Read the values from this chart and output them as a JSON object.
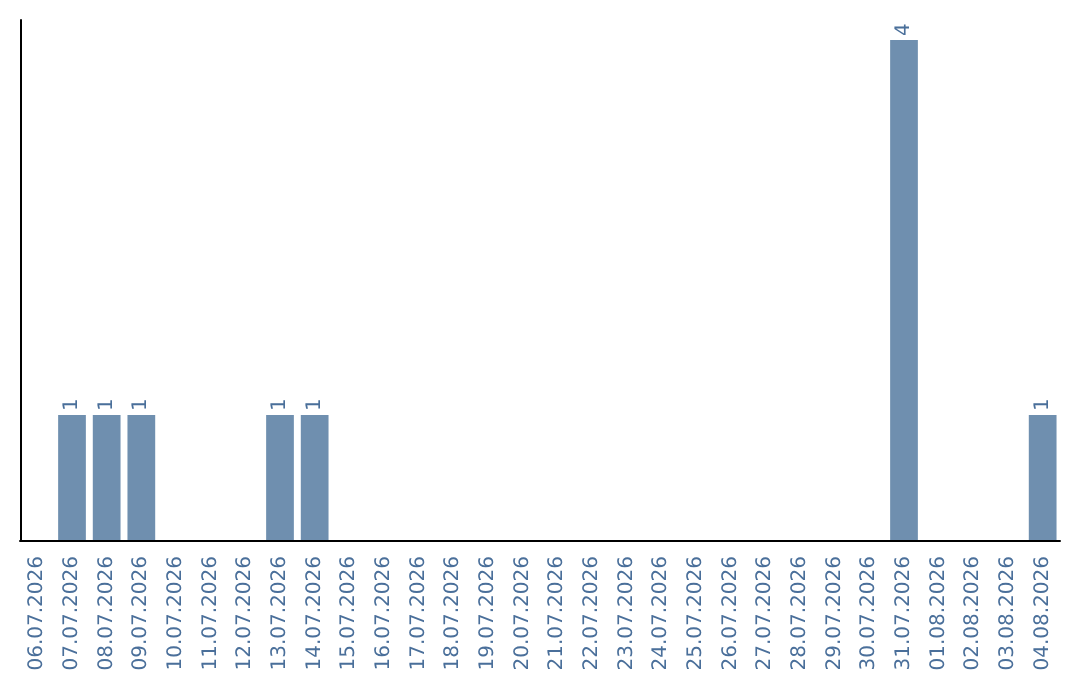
{
  "chart_data": {
    "type": "bar",
    "categories": [
      "06.07.2026",
      "07.07.2026",
      "08.07.2026",
      "09.07.2026",
      "10.07.2026",
      "11.07.2026",
      "12.07.2026",
      "13.07.2026",
      "14.07.2026",
      "15.07.2026",
      "16.07.2026",
      "17.07.2026",
      "18.07.2026",
      "19.07.2026",
      "20.07.2026",
      "21.07.2026",
      "22.07.2026",
      "23.07.2026",
      "24.07.2026",
      "25.07.2026",
      "26.07.2026",
      "27.07.2026",
      "28.07.2026",
      "29.07.2026",
      "30.07.2026",
      "31.07.2026",
      "01.08.2026",
      "02.08.2026",
      "03.08.2026",
      "04.08.2026"
    ],
    "values": [
      0,
      1,
      1,
      1,
      0,
      0,
      0,
      1,
      1,
      0,
      0,
      0,
      0,
      0,
      0,
      0,
      0,
      0,
      0,
      0,
      0,
      0,
      0,
      0,
      0,
      4,
      0,
      0,
      0,
      1
    ],
    "value_labels": [
      null,
      "1",
      "1",
      "1",
      null,
      null,
      null,
      "1",
      "1",
      null,
      null,
      null,
      null,
      null,
      null,
      null,
      null,
      null,
      null,
      null,
      null,
      null,
      null,
      null,
      null,
      "4",
      null,
      null,
      null,
      "1"
    ],
    "color": "#6f8faf",
    "tick_labels": "x",
    "grid": false
  }
}
